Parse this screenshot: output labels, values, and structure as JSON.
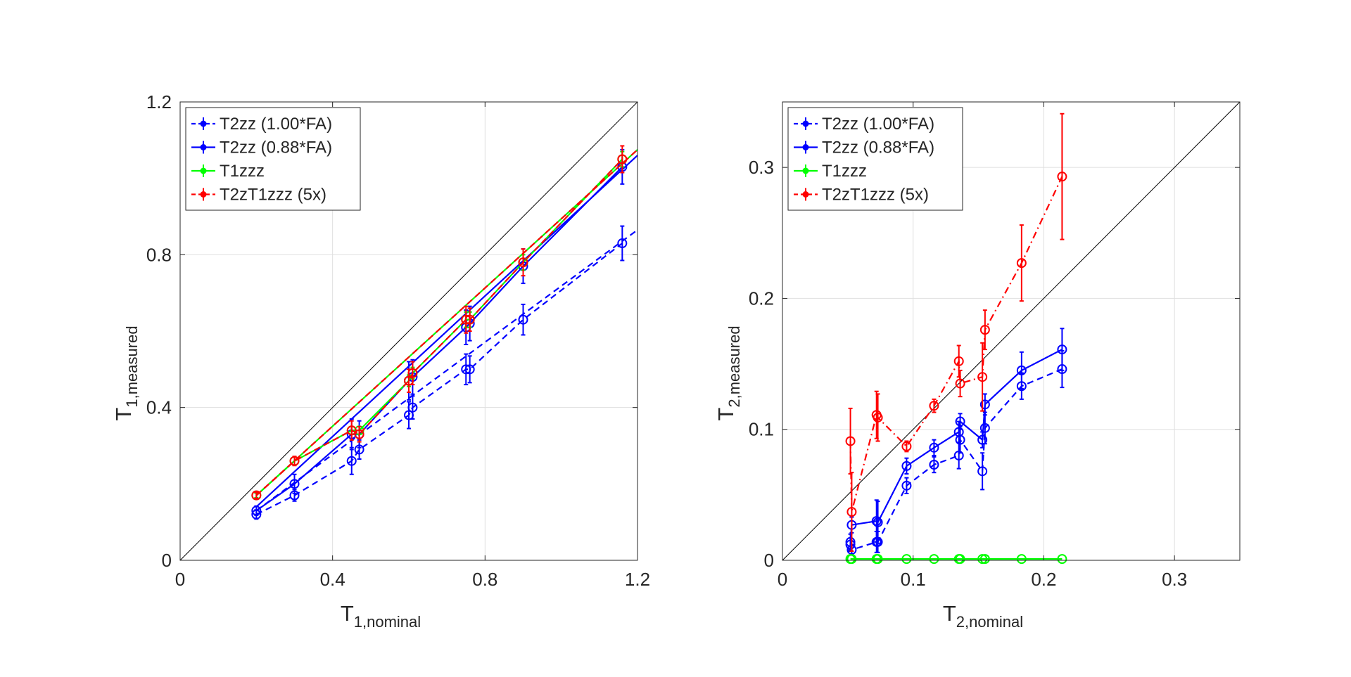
{
  "chart_data": [
    {
      "type": "line",
      "id": "t1",
      "xlabel": "T",
      "xlabel_sub": "1,nominal",
      "ylabel": "T",
      "ylabel_sub": "1,measured",
      "xlim": [
        0,
        1.2
      ],
      "ylim": [
        0,
        1.2
      ],
      "xticks": [
        0,
        0.4,
        0.8,
        1.2
      ],
      "yticks": [
        0,
        0.4,
        0.8,
        1.2
      ],
      "xtick_labels": [
        "0",
        "0.4",
        "0.8",
        "1.2"
      ],
      "ytick_labels": [
        "0",
        "0.4",
        "0.8",
        "1.2"
      ],
      "grid": true,
      "legend_position": "top-left",
      "identity_line": true,
      "series": [
        {
          "name": "T2zz (1.00*FA)",
          "color": "#0000ff",
          "style": "dashed",
          "x": [
            0.2,
            0.3,
            0.45,
            0.47,
            0.6,
            0.61,
            0.75,
            0.76,
            0.9,
            1.16
          ],
          "y": [
            0.12,
            0.17,
            0.26,
            0.29,
            0.38,
            0.4,
            0.5,
            0.5,
            0.63,
            0.83
          ],
          "err": [
            0.012,
            0.015,
            0.035,
            0.025,
            0.035,
            0.03,
            0.04,
            0.035,
            0.04,
            0.045
          ],
          "fit": [
            [
              0.2,
              0.13
            ],
            [
              1.2,
              0.865
            ]
          ]
        },
        {
          "name": "T2zz (0.88*FA)",
          "color": "#0000ff",
          "style": "solid",
          "x": [
            0.2,
            0.3,
            0.45,
            0.47,
            0.6,
            0.61,
            0.75,
            0.76,
            0.9,
            1.16
          ],
          "y": [
            0.13,
            0.2,
            0.33,
            0.33,
            0.47,
            0.48,
            0.61,
            0.62,
            0.77,
            1.03
          ],
          "err": [
            0.012,
            0.025,
            0.04,
            0.035,
            0.05,
            0.045,
            0.045,
            0.045,
            0.045,
            0.045
          ],
          "fit": [
            [
              0.2,
              0.14
            ],
            [
              1.2,
              1.06
            ]
          ]
        },
        {
          "name": "T1zzz",
          "color": "#00ff00",
          "style": "solid",
          "x": [
            0.2,
            0.3,
            0.45,
            0.47,
            0.6,
            0.61,
            0.75,
            0.76,
            0.9,
            1.16
          ],
          "y": [
            0.17,
            0.26,
            0.34,
            0.34,
            0.47,
            0.49,
            0.63,
            0.63,
            0.78,
            1.05
          ],
          "err": [
            0.006,
            0.01,
            0.01,
            0.01,
            0.015,
            0.015,
            0.02,
            0.02,
            0.02,
            0.02
          ],
          "fit": [
            [
              0.2,
              0.17
            ],
            [
              1.2,
              1.075
            ]
          ]
        },
        {
          "name": "T2zT1zzz (5x)",
          "color": "#ff0000",
          "style": "dashed",
          "x": [
            0.2,
            0.3,
            0.45,
            0.47,
            0.6,
            0.61,
            0.75,
            0.76,
            0.9,
            1.16
          ],
          "y": [
            0.17,
            0.26,
            0.34,
            0.33,
            0.47,
            0.49,
            0.63,
            0.63,
            0.78,
            1.05
          ],
          "err": [
            0.008,
            0.012,
            0.025,
            0.02,
            0.03,
            0.03,
            0.035,
            0.03,
            0.035,
            0.035
          ],
          "fit": [
            [
              0.2,
              0.17
            ],
            [
              1.2,
              1.075
            ]
          ]
        }
      ]
    },
    {
      "type": "line",
      "id": "t2",
      "xlabel": "T",
      "xlabel_sub": "2,nominal",
      "ylabel": "T",
      "ylabel_sub": "2,measured",
      "xlim": [
        0,
        0.35
      ],
      "ylim": [
        0,
        0.35
      ],
      "xticks": [
        0,
        0.1,
        0.2,
        0.3
      ],
      "yticks": [
        0,
        0.1,
        0.2,
        0.3
      ],
      "xtick_labels": [
        "0",
        "0.1",
        "0.2",
        "0.3"
      ],
      "ytick_labels": [
        "0",
        "0.1",
        "0.2",
        "0.3"
      ],
      "grid": true,
      "legend_position": "top-left",
      "identity_line": true,
      "series": [
        {
          "name": "T2zz (1.00*FA)",
          "color": "#0000ff",
          "style": "dashed",
          "x": [
            0.052,
            0.053,
            0.072,
            0.073,
            0.095,
            0.116,
            0.135,
            0.136,
            0.153,
            0.155,
            0.183,
            0.214
          ],
          "y": [
            0.012,
            0.008,
            0.014,
            0.014,
            0.057,
            0.073,
            0.08,
            0.092,
            0.068,
            0.101,
            0.133,
            0.146
          ],
          "err": [
            0.005,
            0.004,
            0.008,
            0.008,
            0.006,
            0.006,
            0.01,
            0.01,
            0.014,
            0.012,
            0.01,
            0.014
          ],
          "fit": null
        },
        {
          "name": "T2zz (0.88*FA)",
          "color": "#0000ff",
          "style": "solid",
          "x": [
            0.052,
            0.053,
            0.072,
            0.073,
            0.095,
            0.116,
            0.135,
            0.136,
            0.153,
            0.155,
            0.183,
            0.214
          ],
          "y": [
            0.014,
            0.027,
            0.03,
            0.029,
            0.072,
            0.086,
            0.098,
            0.106,
            0.092,
            0.119,
            0.145,
            0.161
          ],
          "err": [
            0.006,
            0.006,
            0.016,
            0.016,
            0.006,
            0.006,
            0.008,
            0.006,
            0.006,
            0.008,
            0.014,
            0.016
          ],
          "fit": null
        },
        {
          "name": "T1zzz",
          "color": "#00ff00",
          "style": "solid",
          "x": [
            0.052,
            0.053,
            0.072,
            0.073,
            0.095,
            0.116,
            0.135,
            0.136,
            0.153,
            0.155,
            0.183,
            0.214
          ],
          "y": [
            0.001,
            0.001,
            0.001,
            0.001,
            0.001,
            0.001,
            0.001,
            0.001,
            0.001,
            0.001,
            0.001,
            0.001
          ],
          "err": [
            0,
            0,
            0,
            0,
            0,
            0,
            0,
            0,
            0,
            0,
            0,
            0
          ],
          "fit": null
        },
        {
          "name": "T2zT1zzz (5x)",
          "color": "#ff0000",
          "style": "dashdot",
          "x": [
            0.052,
            0.053,
            0.072,
            0.073,
            0.095,
            0.116,
            0.135,
            0.136,
            0.153,
            0.155,
            0.183,
            0.214
          ],
          "y": [
            0.091,
            0.037,
            0.111,
            0.109,
            0.087,
            0.118,
            0.152,
            0.135,
            0.14,
            0.176,
            0.227,
            0.293
          ],
          "err": [
            0.025,
            0.03,
            0.018,
            0.018,
            0.004,
            0.005,
            0.012,
            0.01,
            0.026,
            0.015,
            0.029,
            0.048
          ],
          "fit": null
        }
      ]
    }
  ]
}
